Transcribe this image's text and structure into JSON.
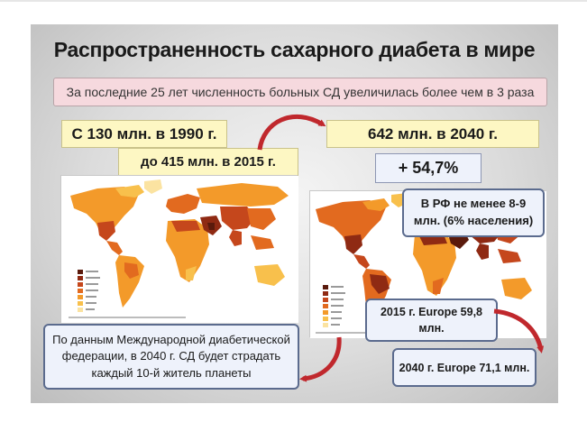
{
  "title": "Распространенность сахарного диабета в мире",
  "banner": "За последние 25 лет численность больных СД увеличилась более чем в 3 раза",
  "stats": {
    "count_1990": "С 130 млн. в 1990 г.",
    "count_2015": "до 415 млн. в 2015 г.",
    "count_2040": "642 млн. в 2040 г.",
    "growth": "+ 54,7%"
  },
  "callouts": {
    "russia_line1": "В РФ не менее  8-9",
    "russia_line2": "млн. (6% населения)",
    "europe_2015_line1": "2015 г. Europe 59,8",
    "europe_2015_line2": "млн.",
    "europe_2040": "2040 г. Europe 71,1 млн."
  },
  "idf_note": {
    "line1": "По данным Международной диабетической",
    "line2": "федерации, в 2040 г. СД будет страдать",
    "line3": "каждый 10-й житель планеты"
  },
  "colors": {
    "arrow": "#c0282d",
    "ocean": "#ffffff",
    "legend": [
      "#5a1a0c",
      "#8f2a13",
      "#c5471c",
      "#e26a1f",
      "#f39a2a",
      "#f8c04c",
      "#fbe3a1"
    ]
  }
}
